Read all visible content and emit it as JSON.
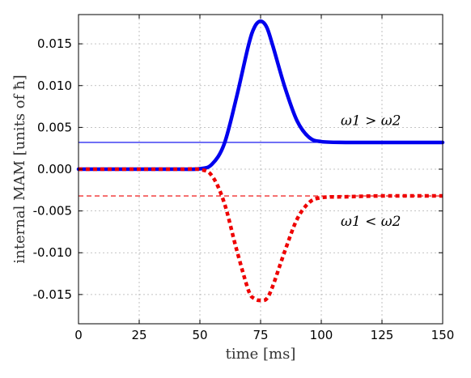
{
  "chart_data": {
    "type": "line",
    "title": "",
    "xlabel": "time  [ms]",
    "ylabel": "internal MAM  [units of ħ]",
    "xlim": [
      0,
      150
    ],
    "ylim": [
      -0.0185,
      0.0185
    ],
    "xticks": [
      0,
      25,
      50,
      75,
      100,
      125,
      150
    ],
    "xtick_labels": [
      "0",
      "25",
      "50",
      "75",
      "100",
      "125",
      "150"
    ],
    "yticks": [
      0.015,
      0.01,
      0.005,
      0.0,
      -0.005,
      -0.01,
      -0.015
    ],
    "ytick_labels": [
      "0.015",
      "0.010",
      "0.005",
      "0.000",
      "-0.005",
      "-0.010",
      "-0.015"
    ],
    "grid": true,
    "series": [
      {
        "color": "#0000ee",
        "style": "solid-thick",
        "x": [
          0,
          40,
          50,
          55,
          60,
          65,
          70,
          72.5,
          75,
          77.5,
          80,
          85,
          90,
          95,
          100,
          110,
          125,
          150
        ],
        "y": [
          0,
          0,
          5e-05,
          0.0006,
          0.003,
          0.0085,
          0.0148,
          0.017,
          0.0177,
          0.017,
          0.0148,
          0.0098,
          0.0058,
          0.0038,
          0.0033,
          0.0032,
          0.0032,
          0.0032
        ]
      },
      {
        "color": "#ee0000",
        "style": "dotted-thick",
        "x": [
          0,
          40,
          50,
          55,
          60,
          65,
          70,
          72.5,
          75,
          77.5,
          80,
          85,
          90,
          95,
          100,
          110,
          125,
          150
        ],
        "y": [
          0,
          0,
          -5e-05,
          -0.0008,
          -0.004,
          -0.0095,
          -0.0145,
          -0.0155,
          -0.0157,
          -0.0155,
          -0.014,
          -0.0098,
          -0.006,
          -0.004,
          -0.0034,
          -0.0033,
          -0.0032,
          -0.0032
        ]
      },
      {
        "color": "#0000ee",
        "style": "solid-thin",
        "x": [
          0,
          150
        ],
        "y": [
          0.0032,
          0.0032
        ]
      },
      {
        "color": "#ee0000",
        "style": "dashed-thin",
        "x": [
          0,
          150
        ],
        "y": [
          -0.0032,
          -0.0032
        ]
      }
    ],
    "annotations": [
      {
        "text": "ω1 > ω2",
        "x": 108,
        "y": 0.0053
      },
      {
        "text": "ω1 < ω2",
        "x": 108,
        "y": -0.0068
      }
    ]
  }
}
